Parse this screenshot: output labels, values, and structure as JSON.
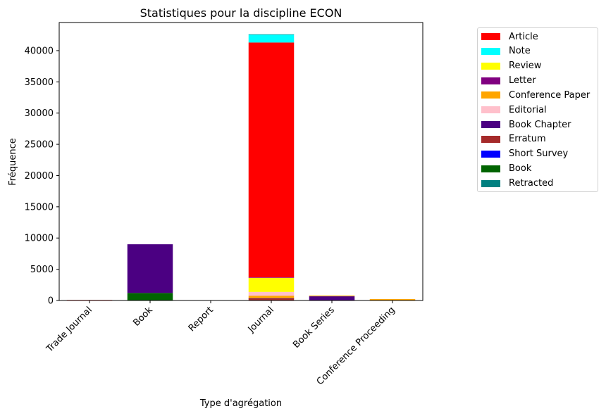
{
  "chart_data": {
    "type": "bar",
    "stacked": true,
    "title": "Statistiques pour la discipline ECON",
    "xlabel": "Type d'agrégation",
    "ylabel": "Fréquence",
    "ylim": [
      0,
      44500
    ],
    "yticks": [
      0,
      5000,
      10000,
      15000,
      20000,
      25000,
      30000,
      35000,
      40000
    ],
    "ytick_labels": [
      "0",
      "5000",
      "10000",
      "15000",
      "20000",
      "25000",
      "30000",
      "35000",
      "40000"
    ],
    "categories": [
      "Trade Journal",
      "Book",
      "Report",
      "Journal",
      "Book Series",
      "Conference Proceeding"
    ],
    "legend_position": "outside-right-top",
    "grid": false,
    "series": [
      {
        "name": "Article",
        "color": "#ff0000",
        "values": [
          80,
          0,
          0,
          37600,
          0,
          0
        ]
      },
      {
        "name": "Note",
        "color": "#00ffff",
        "values": [
          0,
          0,
          0,
          1300,
          0,
          0
        ]
      },
      {
        "name": "Review",
        "color": "#ffff00",
        "values": [
          0,
          0,
          0,
          2250,
          0,
          0
        ]
      },
      {
        "name": "Letter",
        "color": "#800080",
        "values": [
          0,
          0,
          0,
          80,
          0,
          0
        ]
      },
      {
        "name": "Conference Paper",
        "color": "#ffa500",
        "values": [
          0,
          0,
          0,
          400,
          120,
          220
        ]
      },
      {
        "name": "Editorial",
        "color": "#ffc0cb",
        "values": [
          0,
          0,
          0,
          600,
          0,
          0
        ]
      },
      {
        "name": "Book Chapter",
        "color": "#4b0082",
        "values": [
          0,
          7800,
          0,
          30,
          650,
          0
        ]
      },
      {
        "name": "Erratum",
        "color": "#a52a2a",
        "values": [
          0,
          0,
          0,
          320,
          0,
          0
        ]
      },
      {
        "name": "Short Survey",
        "color": "#0000ff",
        "values": [
          0,
          0,
          0,
          20,
          0,
          0
        ]
      },
      {
        "name": "Book",
        "color": "#006400",
        "values": [
          0,
          1200,
          0,
          0,
          20,
          0
        ]
      },
      {
        "name": "Retracted",
        "color": "#008080",
        "values": [
          0,
          0,
          0,
          5,
          0,
          0
        ]
      }
    ],
    "stack_order_bottom_to_top": [
      "Book",
      "Short Survey",
      "Erratum",
      "Book Chapter",
      "Conference Paper",
      "Editorial",
      "Review",
      "Letter",
      "Article",
      "Note",
      "Retracted"
    ]
  }
}
